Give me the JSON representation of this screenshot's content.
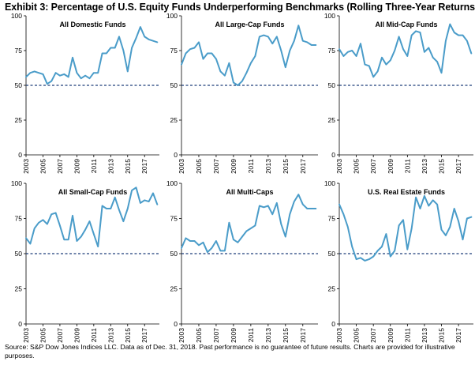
{
  "title": "Exhibit 3: Percentage of U.S. Equity Funds Underperforming Benchmarks (Rolling Three-Year Returns)",
  "source": "Source: S&P Dow Jones Indices LLC.  Data as of Dec. 31, 2018.  Past performance is no guarantee of future results.  Charts are provided for illustrative purposes.",
  "colors": {
    "line": "#4a9cc9",
    "reference": "#1f3f7a",
    "axis": "#000000"
  },
  "chart_data": [
    {
      "type": "line",
      "title": "All Domestic Funds",
      "ylim": [
        0,
        100
      ],
      "yticks": [
        0,
        25,
        50,
        75,
        100
      ],
      "xlim": [
        2003,
        2018.75
      ],
      "xticks": [
        2003,
        2005,
        2007,
        2009,
        2011,
        2013,
        2015,
        2017
      ],
      "reference_line": 50,
      "x": [
        2003,
        2003.5,
        2004,
        2004.5,
        2005,
        2005.5,
        2006,
        2006.5,
        2007,
        2007.5,
        2008,
        2008.5,
        2009,
        2009.5,
        2010,
        2010.5,
        2011,
        2011.5,
        2012,
        2012.5,
        2013,
        2013.5,
        2014,
        2014.5,
        2015,
        2015.5,
        2016,
        2016.5,
        2017,
        2017.5,
        2018,
        2018.5
      ],
      "y": [
        56,
        59,
        60,
        59,
        58,
        51,
        53,
        59,
        57,
        58,
        56,
        70,
        59,
        55,
        57,
        55,
        59,
        59,
        73,
        73,
        77,
        77,
        85,
        75,
        60,
        77,
        84,
        92,
        85,
        83,
        82,
        81
      ]
    },
    {
      "type": "line",
      "title": "All Large-Cap Funds",
      "ylim": [
        0,
        100
      ],
      "yticks": [
        0,
        25,
        50,
        75,
        100
      ],
      "xlim": [
        2003,
        2018.75
      ],
      "xticks": [
        2003,
        2005,
        2007,
        2009,
        2011,
        2013,
        2015,
        2017
      ],
      "reference_line": 50,
      "x": [
        2003,
        2003.5,
        2004,
        2004.5,
        2005,
        2005.5,
        2006,
        2006.5,
        2007,
        2007.5,
        2008,
        2008.5,
        2009,
        2009.5,
        2010,
        2010.5,
        2011,
        2011.5,
        2012,
        2012.5,
        2013,
        2013.5,
        2014,
        2014.5,
        2015,
        2015.5,
        2016,
        2016.5,
        2017,
        2017.5,
        2018,
        2018.5
      ],
      "y": [
        65,
        73,
        76,
        77,
        81,
        69,
        73,
        73,
        69,
        60,
        57,
        66,
        52,
        50,
        53,
        59,
        66,
        71,
        85,
        86,
        85,
        80,
        85,
        75,
        63,
        75,
        82,
        93,
        82,
        81,
        79,
        79
      ]
    },
    {
      "type": "line",
      "title": "All Mid-Cap Funds",
      "ylim": [
        0,
        100
      ],
      "yticks": [
        0,
        25,
        50,
        75,
        100
      ],
      "xlim": [
        2003,
        2018.75
      ],
      "xticks": [
        2003,
        2005,
        2007,
        2009,
        2011,
        2013,
        2015,
        2017
      ],
      "reference_line": 50,
      "x": [
        2003,
        2003.5,
        2004,
        2004.5,
        2005,
        2005.5,
        2006,
        2006.5,
        2007,
        2007.5,
        2008,
        2008.5,
        2009,
        2009.5,
        2010,
        2010.5,
        2011,
        2011.5,
        2012,
        2012.5,
        2013,
        2013.5,
        2014,
        2014.5,
        2015,
        2015.5,
        2016,
        2016.5,
        2017,
        2017.5,
        2018,
        2018.5
      ],
      "y": [
        76,
        71,
        74,
        75,
        71,
        80,
        65,
        64,
        56,
        60,
        70,
        65,
        68,
        75,
        85,
        76,
        71,
        86,
        89,
        88,
        74,
        77,
        70,
        67,
        59,
        82,
        94,
        88,
        86,
        86,
        82,
        73
      ]
    },
    {
      "type": "line",
      "title": "All Small-Cap Funds",
      "ylim": [
        0,
        100
      ],
      "yticks": [
        0,
        25,
        50,
        75,
        100
      ],
      "xlim": [
        2003,
        2018.75
      ],
      "xticks": [
        2003,
        2005,
        2007,
        2009,
        2011,
        2013,
        2015,
        2017
      ],
      "reference_line": 50,
      "x": [
        2003,
        2003.5,
        2004,
        2004.5,
        2005,
        2005.5,
        2006,
        2006.5,
        2007,
        2007.5,
        2008,
        2008.5,
        2009,
        2009.5,
        2010,
        2010.5,
        2011,
        2011.5,
        2012,
        2012.5,
        2013,
        2013.5,
        2014,
        2014.5,
        2015,
        2015.5,
        2016,
        2016.5,
        2017,
        2017.5,
        2018,
        2018.5
      ],
      "y": [
        61,
        57,
        68,
        72,
        74,
        71,
        78,
        79,
        70,
        60,
        60,
        77,
        59,
        62,
        67,
        73,
        64,
        55,
        84,
        82,
        82,
        90,
        81,
        73,
        82,
        95,
        97,
        86,
        88,
        87,
        93,
        85
      ]
    },
    {
      "type": "line",
      "title": "All Multi-Caps",
      "ylim": [
        0,
        100
      ],
      "yticks": [
        0,
        25,
        50,
        75,
        100
      ],
      "xlim": [
        2003,
        2018.75
      ],
      "xticks": [
        2003,
        2005,
        2007,
        2009,
        2011,
        2013,
        2015,
        2017
      ],
      "reference_line": 50,
      "x": [
        2003,
        2003.5,
        2004,
        2004.5,
        2005,
        2005.5,
        2006,
        2006.5,
        2007,
        2007.5,
        2008,
        2008.5,
        2009,
        2009.5,
        2010,
        2010.5,
        2011,
        2011.5,
        2012,
        2012.5,
        2013,
        2013.5,
        2014,
        2014.5,
        2015,
        2015.5,
        2016,
        2016.5,
        2017,
        2017.5,
        2018,
        2018.5
      ],
      "y": [
        54,
        61,
        59,
        59,
        56,
        58,
        51,
        54,
        59,
        52,
        52,
        72,
        60,
        58,
        62,
        66,
        68,
        70,
        84,
        83,
        84,
        78,
        86,
        71,
        62,
        78,
        87,
        92,
        85,
        82,
        82,
        82
      ]
    },
    {
      "type": "line",
      "title": "U.S. Real Estate Funds",
      "ylim": [
        0,
        100
      ],
      "yticks": [
        0,
        25,
        50,
        75,
        100
      ],
      "xlim": [
        2003,
        2018.75
      ],
      "xticks": [
        2003,
        2005,
        2007,
        2009,
        2011,
        2013,
        2015,
        2017
      ],
      "reference_line": 50,
      "x": [
        2003,
        2003.5,
        2004,
        2004.5,
        2005,
        2005.5,
        2006,
        2006.5,
        2007,
        2007.5,
        2008,
        2008.5,
        2009,
        2009.5,
        2010,
        2010.5,
        2011,
        2011.5,
        2012,
        2012.5,
        2013,
        2013.5,
        2014,
        2014.5,
        2015,
        2015.5,
        2016,
        2016.5,
        2017,
        2017.5,
        2018,
        2018.5
      ],
      "y": [
        85,
        78,
        69,
        55,
        46,
        47,
        45,
        46,
        48,
        52,
        55,
        64,
        48,
        52,
        70,
        74,
        53,
        68,
        90,
        82,
        91,
        84,
        88,
        85,
        67,
        63,
        69,
        82,
        73,
        60,
        75,
        76
      ]
    }
  ]
}
